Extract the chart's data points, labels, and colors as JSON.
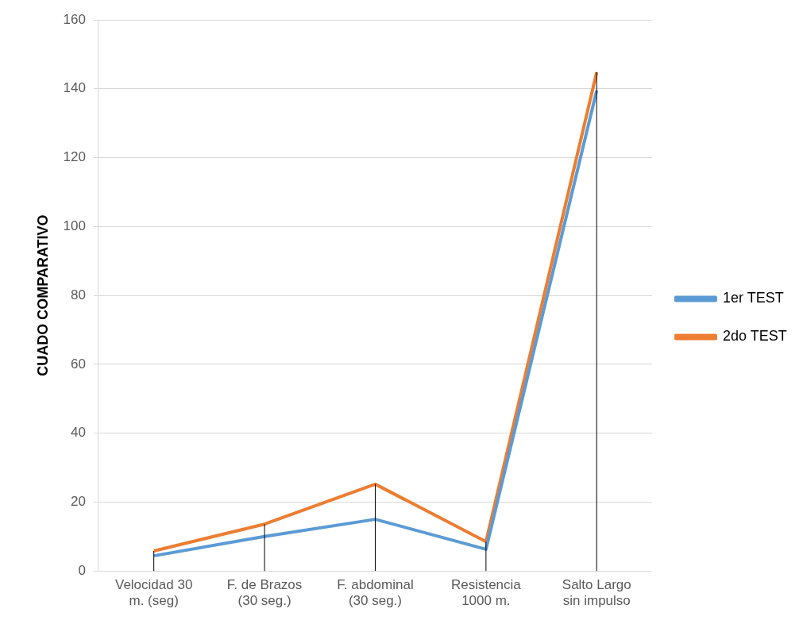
{
  "chart_data": {
    "type": "line",
    "ylabel": "CUADO COMPARATIVO",
    "categories": [
      "Velocidad 30 m. (seg)",
      "F. de Brazos (30 seg.)",
      "F. abdominal (30 seg.)",
      "Resistencia 1000 m.",
      "Salto Largo sin impulso"
    ],
    "series": [
      {
        "name": "1er TEST",
        "color": "#5b9bd5",
        "values": [
          4.4,
          10,
          15,
          6.3,
          139.5
        ]
      },
      {
        "name": "2do TEST",
        "color": "#ed7d31",
        "values": [
          5.8,
          13.6,
          25.2,
          8.5,
          144.8
        ],
        "errors": [
          [
            0,
            5.8
          ],
          [
            0,
            13.6
          ],
          [
            0,
            25.2
          ],
          [
            0,
            8.5
          ],
          [
            0,
            144.8
          ]
        ]
      }
    ],
    "ylim": [
      0,
      160
    ],
    "yticks": [
      0,
      20,
      40,
      60,
      80,
      100,
      120,
      140,
      160
    ],
    "grid": "y",
    "legend": "right",
    "marker": "none",
    "line_style": "solid"
  }
}
